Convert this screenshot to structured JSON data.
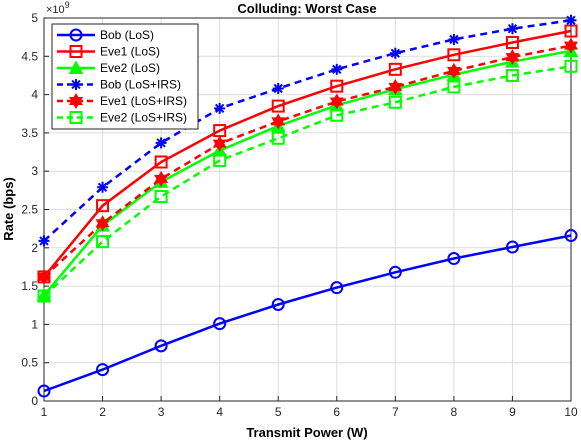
{
  "chart_data": {
    "type": "line",
    "title": "Colluding: Worst Case",
    "xlabel": "Transmit Power (W)",
    "ylabel": "Rate (bps)",
    "y_exponent": "×10^9",
    "xlim": [
      1,
      10
    ],
    "ylim": [
      0,
      5
    ],
    "x_ticks": [
      1,
      2,
      3,
      4,
      5,
      6,
      7,
      8,
      9,
      10
    ],
    "y_ticks": [
      0,
      0.5,
      1,
      1.5,
      2,
      2.5,
      3,
      3.5,
      4,
      4.5,
      5
    ],
    "grid": true,
    "legend_position": "top-left",
    "x": [
      1,
      2,
      3,
      4,
      5,
      6,
      7,
      8,
      9,
      10
    ],
    "series": [
      {
        "name": "Bob (LoS)",
        "color": "#0000ff",
        "style": "solid",
        "marker": "circle",
        "values": [
          0.13,
          0.41,
          0.72,
          1.01,
          1.26,
          1.48,
          1.68,
          1.86,
          2.01,
          2.16
        ]
      },
      {
        "name": "Eve1 (LoS)",
        "color": "#ff0000",
        "style": "solid",
        "marker": "square",
        "values": [
          1.62,
          2.55,
          3.12,
          3.53,
          3.85,
          4.11,
          4.33,
          4.52,
          4.68,
          4.83
        ]
      },
      {
        "name": "Eve2 (LoS)",
        "color": "#00ff00",
        "style": "solid",
        "marker": "triangle",
        "values": [
          1.38,
          2.29,
          2.86,
          3.27,
          3.59,
          3.86,
          4.07,
          4.26,
          4.43,
          4.57
        ]
      },
      {
        "name": "Bob (LoS+IRS)",
        "color": "#0000ff",
        "style": "dashed",
        "marker": "asterisk",
        "values": [
          2.09,
          2.79,
          3.37,
          3.82,
          4.08,
          4.33,
          4.54,
          4.72,
          4.86,
          4.97
        ]
      },
      {
        "name": "Eve1 (LoS+IRS)",
        "color": "#ff0000",
        "style": "dashed",
        "marker": "hexagram",
        "values": [
          1.62,
          2.32,
          2.9,
          3.36,
          3.65,
          3.91,
          4.1,
          4.31,
          4.49,
          4.64
        ]
      },
      {
        "name": "Eve2 (LoS+IRS)",
        "color": "#00ff00",
        "style": "dashed",
        "marker": "square",
        "values": [
          1.37,
          2.08,
          2.67,
          3.14,
          3.43,
          3.73,
          3.9,
          4.1,
          4.25,
          4.37
        ]
      }
    ]
  }
}
